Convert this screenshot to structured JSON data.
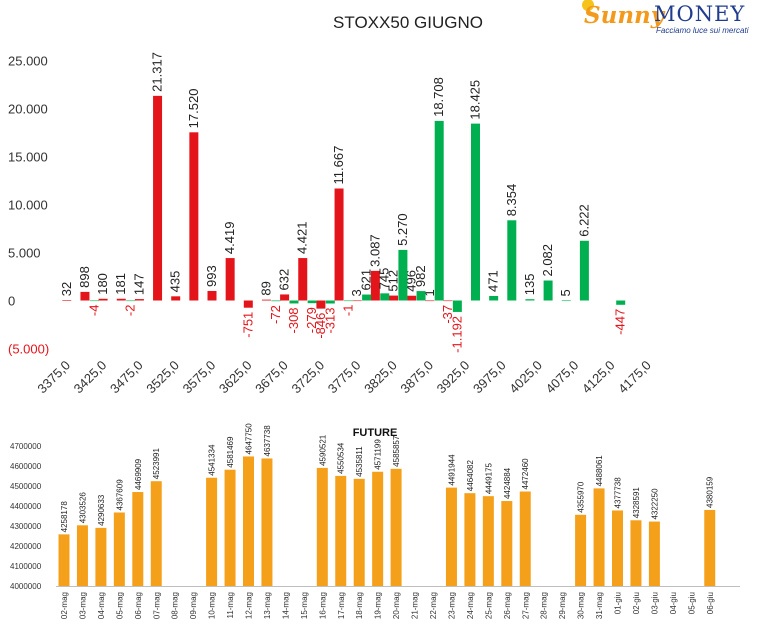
{
  "logo": {
    "text_main_left": "Sunny",
    "text_main_right": "MONEY",
    "tagline": "Facciamo luce sui mercati"
  },
  "colors": {
    "call": "#e4141b",
    "put": "#00b050",
    "future": "#f5a01a",
    "negative_label": "#e4141b",
    "text": "#222222"
  },
  "chart_data": [
    {
      "type": "bar",
      "title": "STOXX50 GIUGNO",
      "ylim": [
        -5000,
        25000
      ],
      "yticks": [
        25000,
        20000,
        15000,
        10000,
        5000,
        0,
        -5000
      ],
      "ytick_labels": [
        "25.000",
        "20.000",
        "15.000",
        "10.000",
        "5.000",
        "0",
        "(5.000)"
      ],
      "xtick_labels": [
        "3375,0",
        "3425,0",
        "3475,0",
        "3525,0",
        "3575,0",
        "3625,0",
        "3675,0",
        "3725,0",
        "3775,0",
        "3825,0",
        "3875,0",
        "3925,0",
        "3975,0",
        "4025,0",
        "4075,0",
        "4125,0",
        "4175,0"
      ],
      "strike_start": 3375,
      "strike_step": 25,
      "series": [
        {
          "color": "#e4141b",
          "points": [
            {
              "strike": 3375,
              "value": 32,
              "label": "32"
            },
            {
              "strike": 3400,
              "value": 898,
              "label": "898"
            },
            {
              "strike": 3425,
              "value": 180,
              "label": "180"
            },
            {
              "strike": 3450,
              "value": 181,
              "label": "181"
            },
            {
              "strike": 3475,
              "value": 147,
              "label": "147"
            },
            {
              "strike": 3500,
              "value": 21317,
              "label": "21.317"
            },
            {
              "strike": 3525,
              "value": 435,
              "label": "435"
            },
            {
              "strike": 3550,
              "value": 17520,
              "label": "17.520"
            },
            {
              "strike": 3575,
              "value": 993,
              "label": "993"
            },
            {
              "strike": 3600,
              "value": 4419,
              "label": "4.419"
            },
            {
              "strike": 3625,
              "value": -751,
              "label": "-751"
            },
            {
              "strike": 3650,
              "value": 89,
              "label": "89"
            },
            {
              "strike": 3675,
              "value": 632,
              "label": "632"
            },
            {
              "strike": 3700,
              "value": 4421,
              "label": "4.421"
            },
            {
              "strike": 3725,
              "value": -846,
              "label": "-846"
            },
            {
              "strike": 3750,
              "value": 11667,
              "label": "11.667"
            },
            {
              "strike": 3775,
              "value": 3,
              "label": "3"
            },
            {
              "strike": 3800,
              "value": 3087,
              "label": "3.087"
            },
            {
              "strike": 3825,
              "value": 512,
              "label": "512"
            },
            {
              "strike": 3850,
              "value": 496,
              "label": "496"
            },
            {
              "strike": 3875,
              "value": 1,
              "label": "1"
            },
            {
              "strike": 3900,
              "value": -37,
              "label": "-37"
            }
          ]
        },
        {
          "color": "#00b050",
          "points": [
            {
              "strike": 3400,
              "value": -4,
              "label": "-4"
            },
            {
              "strike": 3450,
              "value": -2,
              "label": "-2"
            },
            {
              "strike": 3650,
              "value": -72,
              "label": "-72"
            },
            {
              "strike": 3675,
              "value": -308,
              "label": "-308"
            },
            {
              "strike": 3700,
              "value": -279,
              "label": "-279"
            },
            {
              "strike": 3725,
              "value": -313,
              "label": "-313"
            },
            {
              "strike": 3750,
              "value": -1,
              "label": "-1"
            },
            {
              "strike": 3775,
              "value": 621,
              "label": "621"
            },
            {
              "strike": 3800,
              "value": 745,
              "label": "745"
            },
            {
              "strike": 3825,
              "value": 5270,
              "label": "5.270"
            },
            {
              "strike": 3850,
              "value": 982,
              "label": "982"
            },
            {
              "strike": 3875,
              "value": 18708,
              "label": "18.708"
            },
            {
              "strike": 3900,
              "value": -1192,
              "label": "-1.192"
            },
            {
              "strike": 3925,
              "value": 18425,
              "label": "18.425"
            },
            {
              "strike": 3950,
              "value": 471,
              "label": "471"
            },
            {
              "strike": 3975,
              "value": 8354,
              "label": "8.354"
            },
            {
              "strike": 4000,
              "value": 135,
              "label": "135"
            },
            {
              "strike": 4025,
              "value": 2082,
              "label": "2.082"
            },
            {
              "strike": 4050,
              "value": 5,
              "label": "5"
            },
            {
              "strike": 4075,
              "value": 6222,
              "label": "6.222"
            },
            {
              "strike": 4125,
              "value": -447,
              "label": "-447"
            }
          ]
        }
      ]
    },
    {
      "type": "bar",
      "title": "FUTURE",
      "ylim": [
        4000000,
        4700000
      ],
      "ytick_labels": [
        "4700000",
        "4600000",
        "4500000",
        "4400000",
        "4300000",
        "4200000",
        "4100000",
        "4000000"
      ],
      "categories": [
        "02-mag",
        "03-mag",
        "04-mag",
        "05-mag",
        "06-mag",
        "07-mag",
        "08-mag",
        "09-mag",
        "10-mag",
        "11-mag",
        "12-mag",
        "13-mag",
        "14-mag",
        "15-mag",
        "16-mag",
        "17-mag",
        "18-mag",
        "19-mag",
        "20-mag",
        "21-mag",
        "22-mag",
        "23-mag",
        "24-mag",
        "25-mag",
        "26-mag",
        "27-mag",
        "28-mag",
        "29-mag",
        "30-mag",
        "31-mag",
        "01-giu",
        "02-giu",
        "03-giu",
        "04-giu",
        "05-giu",
        "06-giu"
      ],
      "values": [
        4258178,
        4303526,
        4290633,
        4367609,
        4469909,
        4523991,
        null,
        null,
        4541334,
        4581469,
        4647750,
        4637738,
        null,
        null,
        4590521,
        4550534,
        4535811,
        4571199,
        4585857,
        null,
        null,
        4491944,
        4464082,
        4449175,
        4424884,
        4472460,
        null,
        null,
        4355970,
        4488061,
        4377738,
        4328591,
        4322250,
        null,
        null,
        4380159
      ]
    }
  ]
}
